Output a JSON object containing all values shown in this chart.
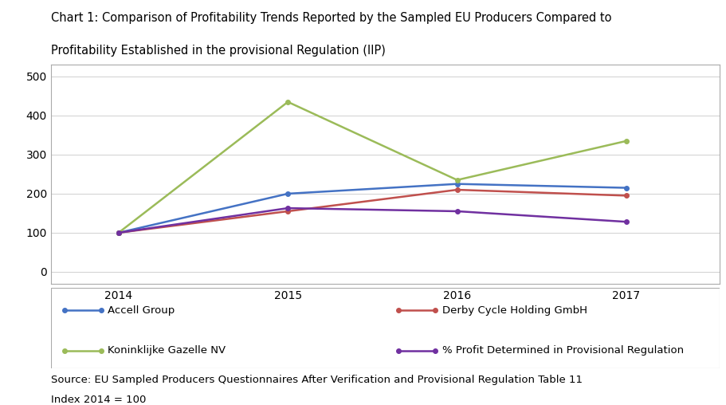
{
  "title_line1": "Chart 1: Comparison of Profitability Trends Reported by the Sampled EU Producers Compared to",
  "title_line2": "Profitability Established in the provisional Regulation (IIP)",
  "years": [
    2014,
    2015,
    2016,
    2017
  ],
  "series": [
    {
      "label": "Accell Group",
      "values": [
        100,
        200,
        225,
        215
      ],
      "color": "#4472C4",
      "marker": "o"
    },
    {
      "label": "Derby Cycle Holding GmbH",
      "values": [
        100,
        155,
        210,
        195
      ],
      "color": "#C0504D",
      "marker": "o"
    },
    {
      "label": "Koninklijke Gazelle NV",
      "values": [
        100,
        435,
        235,
        335
      ],
      "color": "#9BBB59",
      "marker": "o"
    },
    {
      "label": "% Profit Determined in Provisional Regulation",
      "values": [
        100,
        163,
        155,
        128
      ],
      "color": "#7030A0",
      "marker": "o"
    }
  ],
  "ylim": [
    -30,
    530
  ],
  "yticks": [
    0,
    100,
    200,
    300,
    400,
    500
  ],
  "xlim": [
    2013.6,
    2017.55
  ],
  "source_text": "Source: EU Sampled Producers Questionnaires After Verification and Provisional Regulation Table 11",
  "index_text": "Index 2014 = 100",
  "bg_color": "#FFFFFF",
  "plot_bg_color": "#FFFFFF",
  "grid_color": "#D0D0D0",
  "line_width": 1.8,
  "marker_size": 4,
  "title_fontsize": 10.5,
  "tick_fontsize": 10,
  "legend_fontsize": 9.5,
  "source_fontsize": 9.5
}
